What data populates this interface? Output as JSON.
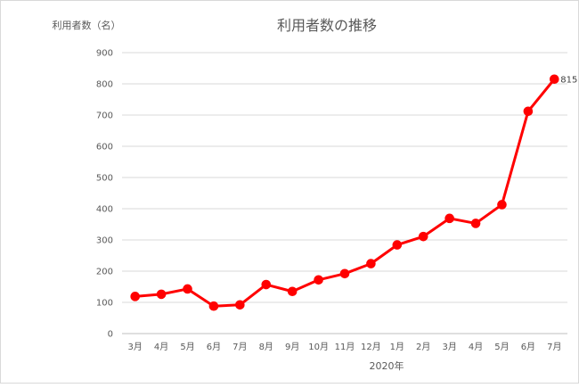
{
  "chart_data": {
    "type": "line",
    "title": "利用者数の推移",
    "ylabel": "利用者数（名）",
    "xlabel": "2020年",
    "categories": [
      "3月",
      "4月",
      "5月",
      "6月",
      "7月",
      "8月",
      "9月",
      "10月",
      "11月",
      "12月",
      "1月",
      "2月",
      "3月",
      "4月",
      "5月",
      "6月",
      "7月"
    ],
    "series": [
      {
        "values": [
          119,
          126,
          143,
          88,
          92,
          157,
          135,
          172,
          192,
          224,
          284,
          311,
          369,
          353,
          413,
          712,
          815
        ]
      }
    ],
    "ylim": [
      0,
      900
    ],
    "yticks": [
      0,
      100,
      200,
      300,
      400,
      500,
      600,
      700,
      800,
      900
    ],
    "data_labels": [
      {
        "index": 16,
        "text": "815"
      }
    ],
    "grid": true,
    "legend": "none",
    "line_color": "#ff0000",
    "grid_color": "#d9d9d9",
    "axis_color": "#bfbfbf"
  }
}
